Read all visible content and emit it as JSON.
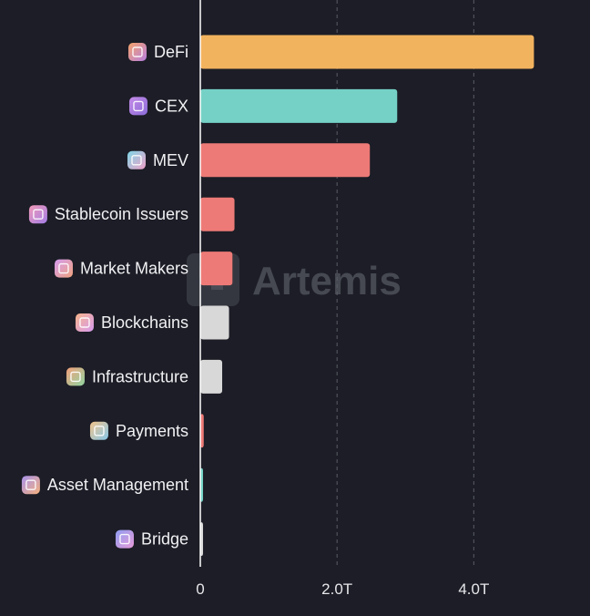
{
  "watermark": {
    "text": "Artemis"
  },
  "colors": {
    "background": "#1c1d26",
    "grid": "#5a5c66",
    "axis": "#ffffff",
    "text": "#f1f1f4",
    "orange": "#f2b35e",
    "teal": "#75d1c6",
    "red": "#ed7a76",
    "gray": "#d8d8d8"
  },
  "chart_data": {
    "type": "bar",
    "orientation": "horizontal",
    "title": "",
    "xlabel": "",
    "ylabel": "",
    "x_ticks": [
      "0",
      "2.0T",
      "4.0T"
    ],
    "x_tick_values": [
      0,
      2.0,
      4.0
    ],
    "xlim": [
      0,
      5.7
    ],
    "value_unit": "T",
    "grid": true,
    "categories": [
      "DeFi",
      "CEX",
      "MEV",
      "Stablecoin Issuers",
      "Market Makers",
      "Blockchains",
      "Infrastructure",
      "Payments",
      "Asset Management",
      "Bridge"
    ],
    "values": [
      4.88,
      2.88,
      2.48,
      0.5,
      0.47,
      0.42,
      0.32,
      0.05,
      0.04,
      0.04
    ],
    "bar_colors": [
      "#f2b35e",
      "#75d1c6",
      "#ed7a76",
      "#ed7a76",
      "#ed7a76",
      "#d8d8d8",
      "#d8d8d8",
      "#ed7a76",
      "#75d1c6",
      "#d8d8d8"
    ],
    "icons": [
      "defi-icon",
      "cex-icon",
      "mev-icon",
      "stablecoin-issuers-icon",
      "market-makers-icon",
      "blockchains-icon",
      "infrastructure-icon",
      "payments-icon",
      "asset-management-icon",
      "bridge-icon"
    ],
    "icon_colors": [
      [
        "#f5a36a",
        "#b77ee0"
      ],
      [
        "#c58be8",
        "#8a6bd8"
      ],
      [
        "#7fd6e6",
        "#f0a0c8"
      ],
      [
        "#f29ab8",
        "#a37ee6"
      ],
      [
        "#d49bf0",
        "#f0a37e"
      ],
      [
        "#f6b48a",
        "#d79af0"
      ],
      [
        "#f3a07c",
        "#8fd4a0"
      ],
      [
        "#f2c48a",
        "#86c7ea"
      ],
      [
        "#a993ee",
        "#f5b07c"
      ],
      [
        "#8f9df2",
        "#e69ad8"
      ]
    ]
  }
}
